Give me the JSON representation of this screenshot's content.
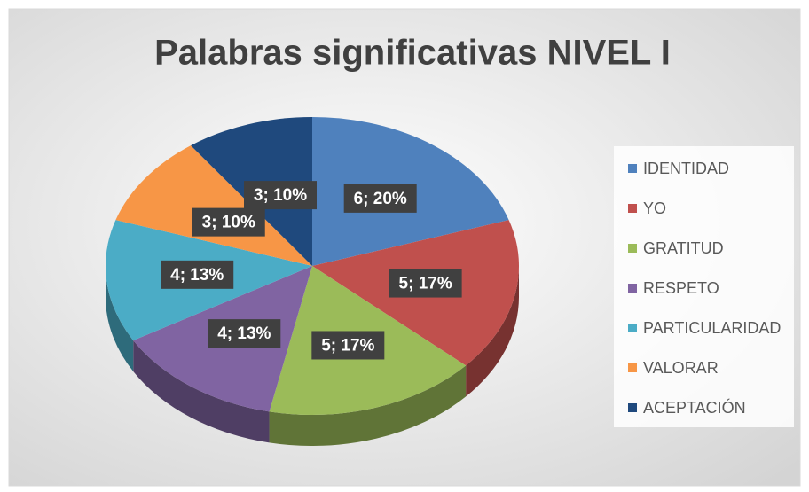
{
  "chart_data": {
    "type": "pie",
    "title": "Palabras significativas NIVEL I",
    "categories": [
      "IDENTIDAD",
      "YO",
      "GRATITUD",
      "RESPETO",
      "PARTICULARIDAD",
      "VALORAR",
      "ACEPTACIÓN"
    ],
    "values": [
      6,
      5,
      5,
      4,
      4,
      3,
      3
    ],
    "value_labels": [
      "6; 20%",
      "5; 17%",
      "5; 17%",
      "4; 13%",
      "4; 13%",
      "3; 10%",
      "3; 10%"
    ],
    "colors": [
      "#4f81bd",
      "#c0504d",
      "#9bbb59",
      "#8064a2",
      "#4bacc6",
      "#f79646",
      "#1f497d"
    ],
    "legend": "right"
  }
}
